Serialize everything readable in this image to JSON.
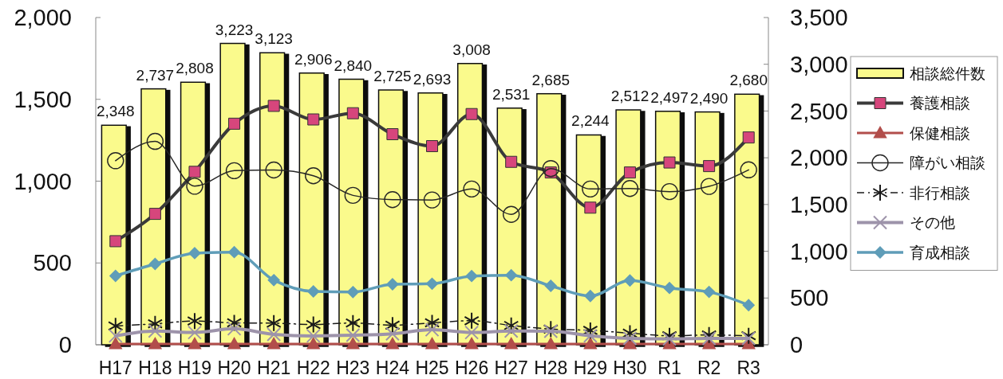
{
  "chart_data": {
    "type": "bar",
    "categories": [
      "H17",
      "H18",
      "H19",
      "H20",
      "H21",
      "H22",
      "H23",
      "H24",
      "H25",
      "H26",
      "H27",
      "H28",
      "H29",
      "H30",
      "R1",
      "R2",
      "R3"
    ],
    "series": [
      {
        "name": "相談総件数",
        "axis": "y2",
        "color": "#fafa8c",
        "values": [
          2348,
          2737,
          2808,
          3223,
          3123,
          2906,
          2840,
          2725,
          2693,
          3008,
          2531,
          2685,
          2244,
          2512,
          2497,
          2490,
          2680
        ],
        "value_labels": [
          "2,348",
          "2,737",
          "2,808",
          "3,223",
          "3,123",
          "2,906",
          "2,840",
          "2,725",
          "2,693",
          "3,008",
          "2,531",
          "2,685",
          "2,244",
          "2,512",
          "2,497",
          "2,490",
          "2,680"
        ]
      },
      {
        "name": "養護相談",
        "type": "line",
        "axis": "y",
        "color": "#3a3a3a",
        "colors": [
          "#d6467c",
          "#d6467c",
          "#d6467c",
          "#d6467c",
          "#d6467c",
          "#d6467c",
          "#d6467c",
          "#d6467c",
          "#d6467c",
          "#d6467c",
          "#d6467c",
          "#d6467c",
          "#d6467c",
          "#d6467c",
          "#d6467c",
          "#d6467c",
          "#d6467c"
        ],
        "marker": "square",
        "line_style": "solid",
        "values": [
          633,
          800,
          1057,
          1351,
          1460,
          1377,
          1415,
          1287,
          1214,
          1410,
          1118,
          1053,
          838,
          1053,
          1114,
          1092,
          1267
        ]
      },
      {
        "name": "保健相談",
        "type": "line",
        "axis": "y",
        "color": "#b24e4b",
        "marker": "triangle",
        "line_style": "solid",
        "values": [
          5,
          5,
          5,
          5,
          5,
          5,
          5,
          5,
          5,
          5,
          5,
          5,
          5,
          5,
          5,
          5,
          5
        ]
      },
      {
        "name": "障がい相談",
        "type": "line",
        "axis": "y",
        "color": "#262626",
        "marker": "circle",
        "line_style": "solid",
        "values": [
          1125,
          1243,
          969,
          1064,
          1068,
          1033,
          913,
          887,
          885,
          952,
          797,
          1077,
          952,
          955,
          936,
          968,
          1069
        ]
      },
      {
        "name": "非行相談",
        "type": "line",
        "axis": "y",
        "color": "#1a1a1a",
        "marker": "cross",
        "line_style": "dashed",
        "values": [
          115,
          128,
          145,
          134,
          132,
          124,
          133,
          120,
          134,
          147,
          118,
          96,
          88,
          71,
          55,
          60,
          55
        ]
      },
      {
        "name": "その他",
        "type": "line",
        "axis": "y",
        "color": "#9d93aa",
        "marker": "cross",
        "line_style": "solid",
        "values": [
          54,
          84,
          75,
          98,
          63,
          54,
          58,
          67,
          92,
          75,
          84,
          83,
          55,
          39,
          36,
          39,
          39
        ]
      },
      {
        "name": "育成相談",
        "type": "line",
        "axis": "y",
        "color": "#5f9db8",
        "marker": "diamond",
        "line_style": "solid",
        "values": [
          421,
          494,
          560,
          566,
          395,
          326,
          322,
          370,
          373,
          420,
          425,
          360,
          298,
          393,
          347,
          323,
          242
        ]
      }
    ],
    "ylim": [
      0,
      2000
    ],
    "yticks": [
      0,
      500,
      {
        "value": 1000,
        "label": "1,000"
      },
      {
        "value": 1500,
        "label": "1,500"
      },
      {
        "value": 2000,
        "label": "2,000"
      }
    ],
    "y2lim": [
      0,
      3500
    ],
    "y2ticks": [
      0,
      500,
      {
        "value": 1000,
        "label": "1,000"
      },
      {
        "value": 1500,
        "label": "1,500"
      },
      {
        "value": 2000,
        "label": "2,000"
      },
      {
        "value": 2500,
        "label": "2,500"
      },
      {
        "value": 3000,
        "label": "3,000"
      },
      {
        "value": 3500,
        "label": "3,500"
      }
    ],
    "legend": "right"
  }
}
